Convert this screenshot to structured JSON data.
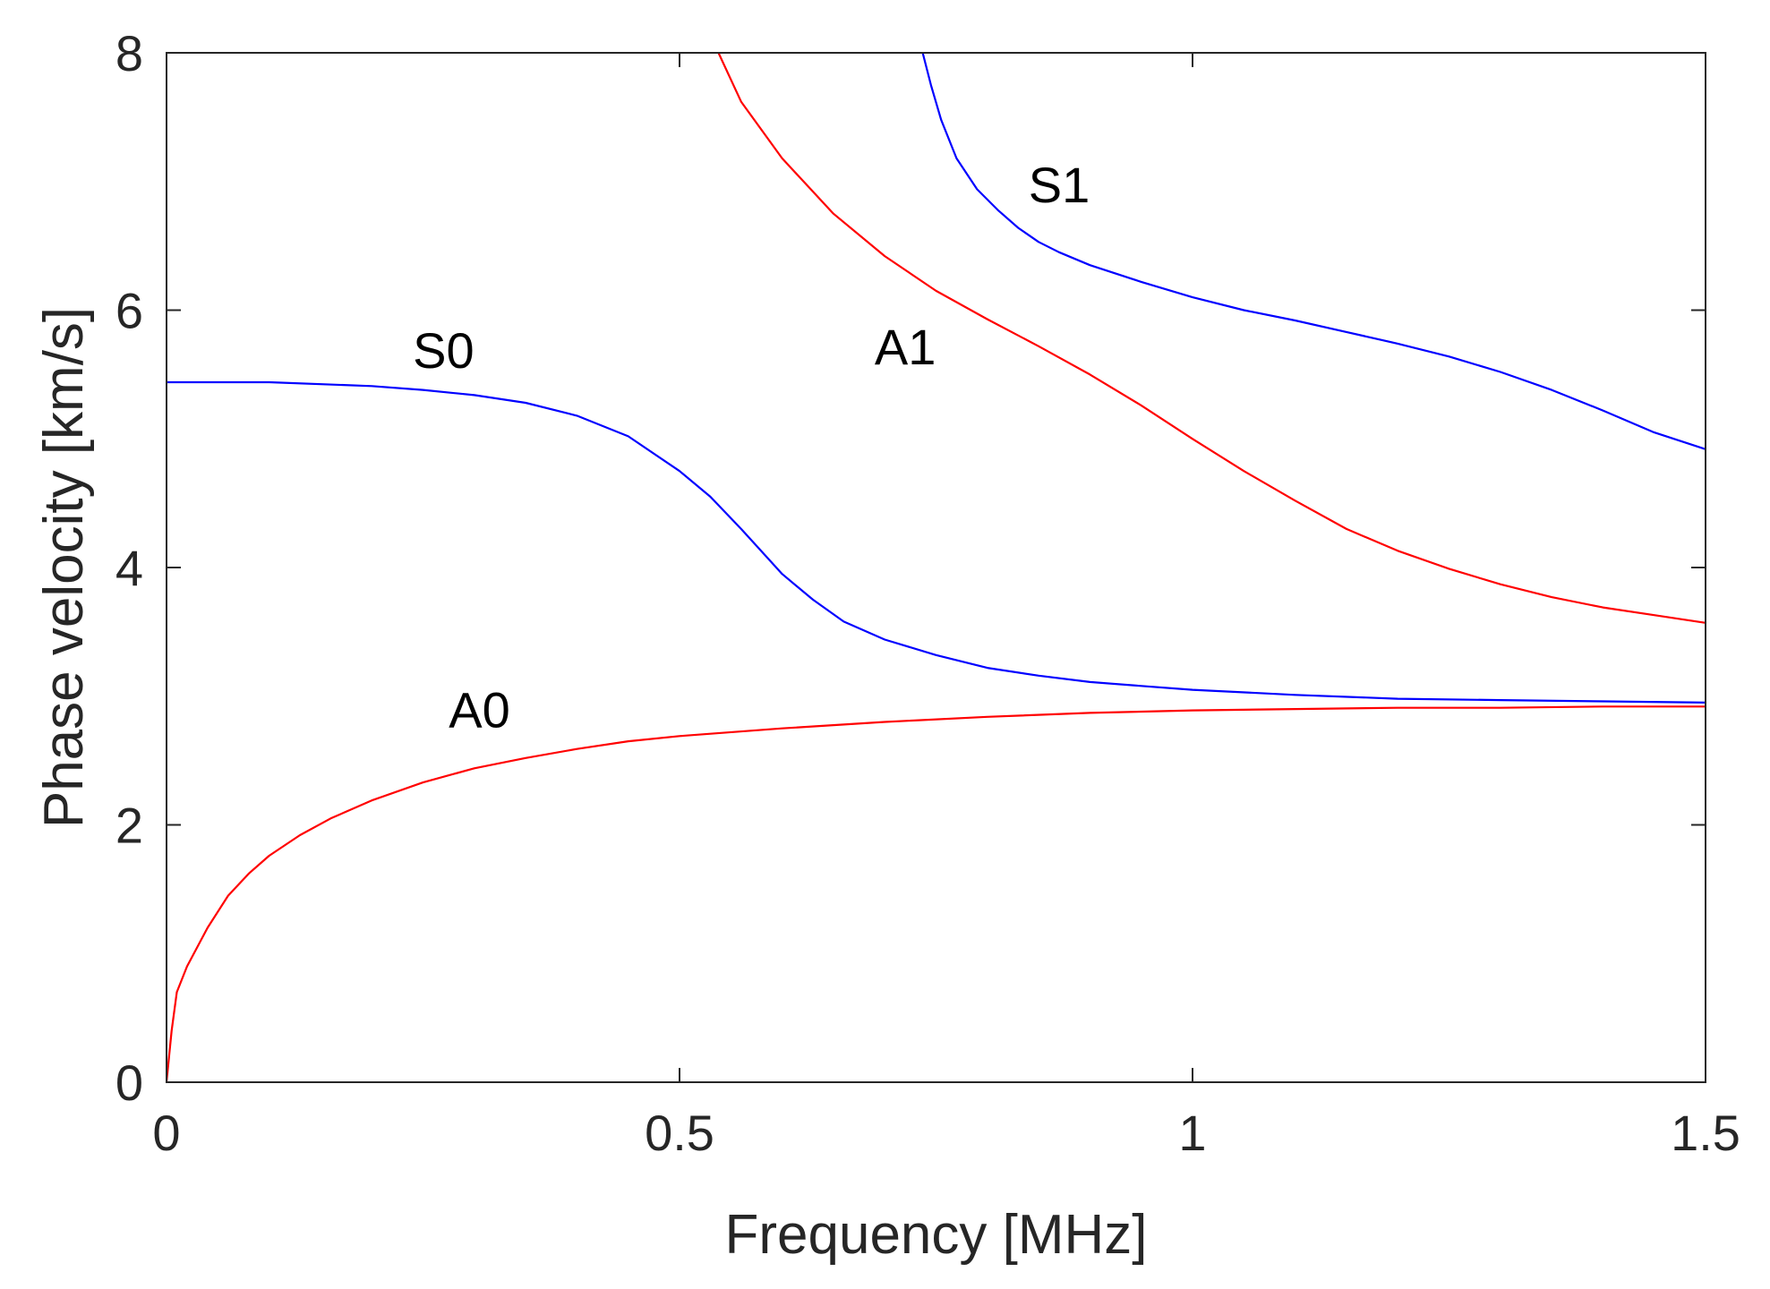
{
  "chart_data": {
    "type": "line",
    "title": "",
    "xlabel": "Frequency [MHz]",
    "ylabel": "Phase velocity [km/s]",
    "xlim": [
      0,
      1.5
    ],
    "ylim": [
      0,
      8
    ],
    "xticks": [
      0,
      0.5,
      1,
      1.5
    ],
    "xtick_labels": [
      "0",
      "0.5",
      "1",
      "1.5"
    ],
    "yticks": [
      0,
      2,
      4,
      6,
      8
    ],
    "ytick_labels": [
      "0",
      "2",
      "4",
      "6",
      "8"
    ],
    "grid": false,
    "series": [
      {
        "name": "A0",
        "color": "#ff0000",
        "points": [
          [
            0,
            0
          ],
          [
            0.005,
            0.4
          ],
          [
            0.01,
            0.7
          ],
          [
            0.02,
            0.9
          ],
          [
            0.04,
            1.2
          ],
          [
            0.06,
            1.45
          ],
          [
            0.08,
            1.62
          ],
          [
            0.1,
            1.76
          ],
          [
            0.13,
            1.92
          ],
          [
            0.16,
            2.05
          ],
          [
            0.2,
            2.19
          ],
          [
            0.25,
            2.33
          ],
          [
            0.3,
            2.44
          ],
          [
            0.35,
            2.52
          ],
          [
            0.4,
            2.59
          ],
          [
            0.45,
            2.65
          ],
          [
            0.5,
            2.69
          ],
          [
            0.6,
            2.75
          ],
          [
            0.7,
            2.8
          ],
          [
            0.8,
            2.84
          ],
          [
            0.9,
            2.87
          ],
          [
            1.0,
            2.89
          ],
          [
            1.1,
            2.9
          ],
          [
            1.2,
            2.91
          ],
          [
            1.3,
            2.91
          ],
          [
            1.4,
            2.92
          ],
          [
            1.5,
            2.92
          ]
        ]
      },
      {
        "name": "S0",
        "color": "#0000ff",
        "points": [
          [
            0,
            5.44
          ],
          [
            0.1,
            5.44
          ],
          [
            0.2,
            5.41
          ],
          [
            0.25,
            5.38
          ],
          [
            0.3,
            5.34
          ],
          [
            0.35,
            5.28
          ],
          [
            0.4,
            5.18
          ],
          [
            0.45,
            5.02
          ],
          [
            0.5,
            4.75
          ],
          [
            0.53,
            4.55
          ],
          [
            0.56,
            4.3
          ],
          [
            0.6,
            3.95
          ],
          [
            0.63,
            3.75
          ],
          [
            0.66,
            3.58
          ],
          [
            0.7,
            3.44
          ],
          [
            0.75,
            3.32
          ],
          [
            0.8,
            3.22
          ],
          [
            0.85,
            3.16
          ],
          [
            0.9,
            3.11
          ],
          [
            0.95,
            3.08
          ],
          [
            1.0,
            3.05
          ],
          [
            1.1,
            3.01
          ],
          [
            1.2,
            2.98
          ],
          [
            1.3,
            2.97
          ],
          [
            1.4,
            2.96
          ],
          [
            1.5,
            2.95
          ]
        ]
      },
      {
        "name": "A1",
        "color": "#ff0000",
        "points": [
          [
            0.538,
            8.0
          ],
          [
            0.56,
            7.62
          ],
          [
            0.6,
            7.18
          ],
          [
            0.65,
            6.75
          ],
          [
            0.7,
            6.42
          ],
          [
            0.75,
            6.15
          ],
          [
            0.8,
            5.93
          ],
          [
            0.85,
            5.72
          ],
          [
            0.9,
            5.5
          ],
          [
            0.95,
            5.26
          ],
          [
            1.0,
            5.0
          ],
          [
            1.05,
            4.75
          ],
          [
            1.1,
            4.52
          ],
          [
            1.15,
            4.3
          ],
          [
            1.2,
            4.13
          ],
          [
            1.25,
            3.99
          ],
          [
            1.3,
            3.87
          ],
          [
            1.35,
            3.77
          ],
          [
            1.4,
            3.69
          ],
          [
            1.45,
            3.63
          ],
          [
            1.5,
            3.57
          ]
        ]
      },
      {
        "name": "S1",
        "color": "#0000ff",
        "points": [
          [
            0.737,
            8.0
          ],
          [
            0.745,
            7.75
          ],
          [
            0.755,
            7.48
          ],
          [
            0.77,
            7.18
          ],
          [
            0.79,
            6.94
          ],
          [
            0.81,
            6.78
          ],
          [
            0.83,
            6.64
          ],
          [
            0.85,
            6.53
          ],
          [
            0.87,
            6.45
          ],
          [
            0.9,
            6.35
          ],
          [
            0.95,
            6.22
          ],
          [
            1.0,
            6.1
          ],
          [
            1.05,
            6.0
          ],
          [
            1.1,
            5.92
          ],
          [
            1.15,
            5.83
          ],
          [
            1.2,
            5.74
          ],
          [
            1.25,
            5.64
          ],
          [
            1.3,
            5.52
          ],
          [
            1.35,
            5.38
          ],
          [
            1.4,
            5.22
          ],
          [
            1.45,
            5.05
          ],
          [
            1.5,
            4.92
          ]
        ]
      }
    ],
    "annotations": [
      {
        "text": "S0",
        "x": 0.27,
        "y": 5.55
      },
      {
        "text": "A0",
        "x": 0.305,
        "y": 2.76
      },
      {
        "text": "A1",
        "x": 0.72,
        "y": 5.58
      },
      {
        "text": "S1",
        "x": 0.87,
        "y": 6.84
      }
    ]
  }
}
